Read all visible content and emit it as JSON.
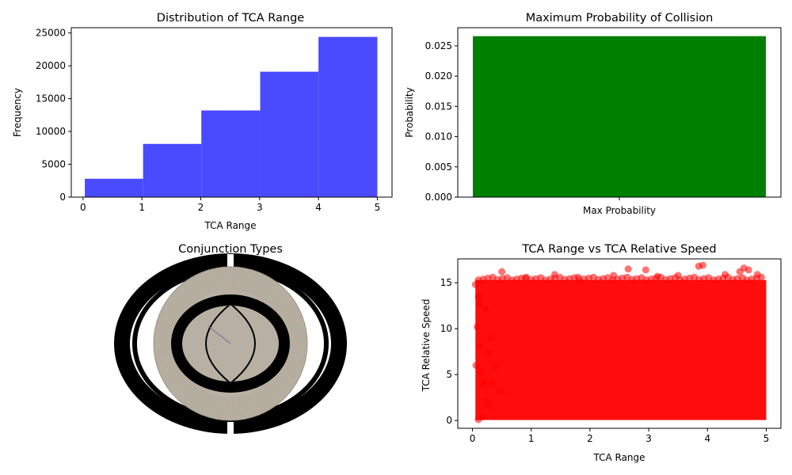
{
  "colors": {
    "histogram": "#4a4aff",
    "bar": "#008000",
    "scatter": "#ff0000",
    "pie_fill": "#b8b0a2",
    "pie_edge": "#000000"
  },
  "chart_data": [
    {
      "type": "bar",
      "title": "Distribution of TCA Range",
      "xlabel": "TCA Range",
      "ylabel": "Frequency",
      "xlim": [
        -0.2,
        5.25
      ],
      "ylim": [
        0,
        25800
      ],
      "xticks": [
        "0",
        "1",
        "2",
        "3",
        "4",
        "5"
      ],
      "yticks": [
        "0",
        "5000",
        "10000",
        "15000",
        "20000",
        "25000"
      ],
      "bins": [
        {
          "x0": 0.03,
          "x1": 1.02,
          "value": 2800
        },
        {
          "x0": 1.02,
          "x1": 2.01,
          "value": 8100
        },
        {
          "x0": 2.01,
          "x1": 3.01,
          "value": 13200
        },
        {
          "x0": 3.01,
          "x1": 4.0,
          "value": 19100
        },
        {
          "x0": 4.0,
          "x1": 5.0,
          "value": 24400
        }
      ]
    },
    {
      "type": "bar",
      "title": "Maximum Probability of Collision",
      "xlabel": "",
      "ylabel": "Probability",
      "categories": [
        "Max Probability"
      ],
      "values": [
        0.0266
      ],
      "ylim": [
        0,
        0.028
      ],
      "yticks": [
        "0.000",
        "0.005",
        "0.010",
        "0.015",
        "0.020",
        "0.025"
      ]
    },
    {
      "type": "pie",
      "title": "Conjunction Types"
    },
    {
      "type": "scatter",
      "title": "TCA Range vs TCA Relative Speed",
      "xlabel": "TCA Range",
      "ylabel": "TCA Relative Speed",
      "xlim": [
        -0.25,
        5.25
      ],
      "ylim": [
        -0.85,
        17.6
      ],
      "xticks": [
        "0",
        "1",
        "2",
        "3",
        "4",
        "5"
      ],
      "yticks": [
        "0",
        "5",
        "10",
        "15"
      ],
      "outliers": [
        [
          0.05,
          14.8
        ],
        [
          0.1,
          13.5
        ],
        [
          0.08,
          10.2
        ],
        [
          0.12,
          8.1
        ],
        [
          0.06,
          6.0
        ],
        [
          0.15,
          5.2
        ],
        [
          0.2,
          4.3
        ],
        [
          0.18,
          3.9
        ],
        [
          0.25,
          2.0
        ],
        [
          0.1,
          0.1
        ],
        [
          0.3,
          1.6
        ],
        [
          0.35,
          4.1
        ],
        [
          0.5,
          16.2
        ],
        [
          0.45,
          3.2
        ],
        [
          0.12,
          12.7
        ],
        [
          1.4,
          15.9
        ],
        [
          2.4,
          15.8
        ],
        [
          2.65,
          16.5
        ],
        [
          2.95,
          16.4
        ],
        [
          3.15,
          15.7
        ],
        [
          3.85,
          16.8
        ],
        [
          3.92,
          16.9
        ],
        [
          4.3,
          15.9
        ],
        [
          4.55,
          16.2
        ],
        [
          4.62,
          16.6
        ],
        [
          4.7,
          16.4
        ],
        [
          0.9,
          15.5
        ],
        [
          1.8,
          15.6
        ],
        [
          3.5,
          15.8
        ],
        [
          4.85,
          15.9
        ],
        [
          0.22,
          12.1
        ],
        [
          0.3,
          9.0
        ],
        [
          0.28,
          7.4
        ],
        [
          0.4,
          5.9
        ],
        [
          0.16,
          0.4
        ]
      ]
    }
  ]
}
